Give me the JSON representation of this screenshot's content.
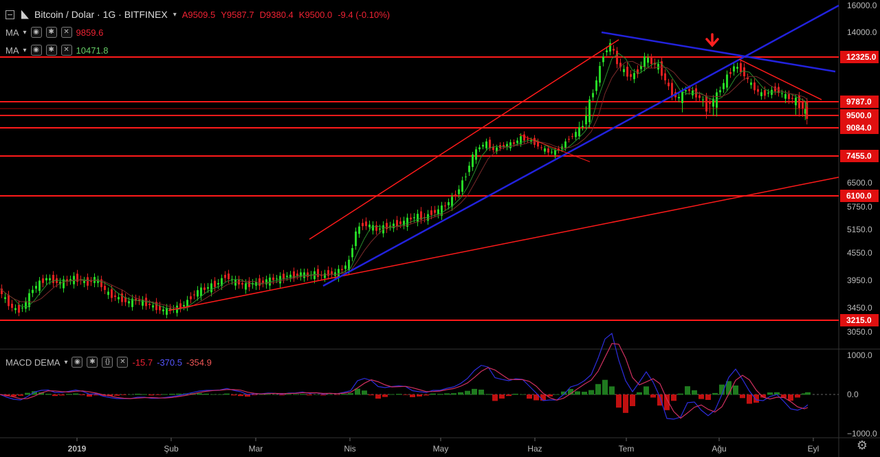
{
  "header": {
    "title": "Bitcoin / Dolar · 1G · BITFINEX",
    "open": "A9509.5",
    "high": "Y9587.7",
    "low": "D9380.4",
    "close": "K9500.0",
    "change": "-9.4 (-0.10%)",
    "ma1_label": "MA",
    "ma1_value": "9859.6",
    "ma2_label": "MA",
    "ma2_value": "10471.8",
    "macd_label": "MACD DEMA",
    "macd_v1": "-15.7",
    "macd_v2": "-370.5",
    "macd_v3": "-354.9"
  },
  "chart_data": {
    "type": "line",
    "price_axis_ticks": [
      "16000.0",
      "14000.0",
      "12325.0",
      "9787.0",
      "9500.0",
      "9084.0",
      "7455.0",
      "6500.0",
      "6100.0",
      "5750.0",
      "5150.0",
      "4550.0",
      "3950.0",
      "3450.0",
      "3215.0",
      "3050.0"
    ],
    "price_axis_labels_plain": [
      "16000.0",
      "14000.0",
      "6500.0",
      "5750.0",
      "5150.0",
      "4550.0",
      "3950.0",
      "3450.0",
      "3050.0"
    ],
    "horizontal_levels": [
      12325,
      9787,
      9500,
      9084,
      7455,
      6100,
      3215
    ],
    "horizontal_level_labels": [
      "12325.0",
      "9787.0",
      "9500.0",
      "9084.0",
      "7455.0",
      "6100.0",
      "3215.0"
    ],
    "macd_axis_ticks": [
      "1000.0",
      "0.0",
      "−1000.0"
    ],
    "time_axis_labels": [
      "2019",
      "Şub",
      "Mar",
      "Nis",
      "May",
      "Haz",
      "Tem",
      "Ağu",
      "Eyl"
    ],
    "price_path": [
      [
        0,
        3800
      ],
      [
        10,
        3600
      ],
      [
        20,
        3450
      ],
      [
        30,
        3400
      ],
      [
        40,
        3550
      ],
      [
        50,
        3800
      ],
      [
        60,
        3900
      ],
      [
        70,
        4000
      ],
      [
        80,
        3950
      ],
      [
        90,
        3900
      ],
      [
        100,
        3950
      ],
      [
        110,
        4000
      ],
      [
        120,
        3950
      ],
      [
        130,
        3900
      ],
      [
        140,
        4000
      ],
      [
        150,
        3850
      ],
      [
        160,
        3700
      ],
      [
        170,
        3650
      ],
      [
        180,
        3600
      ],
      [
        190,
        3550
      ],
      [
        200,
        3600
      ],
      [
        210,
        3550
      ],
      [
        220,
        3500
      ],
      [
        230,
        3450
      ],
      [
        240,
        3400
      ],
      [
        250,
        3420
      ],
      [
        260,
        3450
      ],
      [
        270,
        3500
      ],
      [
        280,
        3650
      ],
      [
        290,
        3750
      ],
      [
        300,
        3800
      ],
      [
        310,
        3850
      ],
      [
        320,
        3900
      ],
      [
        330,
        4050
      ],
      [
        340,
        3950
      ],
      [
        350,
        3900
      ],
      [
        360,
        3850
      ],
      [
        370,
        3900
      ],
      [
        380,
        3900
      ],
      [
        390,
        3950
      ],
      [
        400,
        3980
      ],
      [
        410,
        4000
      ],
      [
        420,
        4050
      ],
      [
        430,
        4050
      ],
      [
        440,
        4100
      ],
      [
        450,
        4050
      ],
      [
        460,
        4100
      ],
      [
        470,
        4050
      ],
      [
        480,
        4100
      ],
      [
        490,
        4100
      ],
      [
        500,
        4200
      ],
      [
        510,
        4350
      ],
      [
        520,
        5100
      ],
      [
        530,
        5300
      ],
      [
        540,
        5250
      ],
      [
        550,
        5150
      ],
      [
        560,
        5200
      ],
      [
        570,
        5250
      ],
      [
        580,
        5300
      ],
      [
        590,
        5350
      ],
      [
        600,
        5450
      ],
      [
        610,
        5500
      ],
      [
        620,
        5450
      ],
      [
        630,
        5600
      ],
      [
        640,
        5650
      ],
      [
        650,
        5800
      ],
      [
        660,
        6000
      ],
      [
        670,
        6300
      ],
      [
        680,
        6800
      ],
      [
        690,
        7500
      ],
      [
        700,
        8000
      ],
      [
        710,
        8200
      ],
      [
        720,
        7800
      ],
      [
        730,
        8000
      ],
      [
        740,
        8100
      ],
      [
        750,
        8200
      ],
      [
        760,
        8500
      ],
      [
        770,
        8400
      ],
      [
        780,
        8200
      ],
      [
        790,
        7900
      ],
      [
        800,
        7700
      ],
      [
        810,
        7700
      ],
      [
        820,
        8000
      ],
      [
        830,
        8500
      ],
      [
        840,
        8800
      ],
      [
        850,
        9200
      ],
      [
        860,
        9800
      ],
      [
        870,
        11000
      ],
      [
        880,
        12500
      ],
      [
        890,
        13200
      ],
      [
        900,
        12000
      ],
      [
        910,
        11500
      ],
      [
        920,
        11200
      ],
      [
        930,
        11500
      ],
      [
        940,
        12300
      ],
      [
        950,
        12000
      ],
      [
        960,
        11800
      ],
      [
        970,
        11000
      ],
      [
        980,
        10200
      ],
      [
        990,
        10000
      ],
      [
        1000,
        10500
      ],
      [
        1010,
        10300
      ],
      [
        1020,
        10000
      ],
      [
        1030,
        9700
      ],
      [
        1040,
        9900
      ],
      [
        1050,
        10500
      ],
      [
        1060,
        11200
      ],
      [
        1070,
        11800
      ],
      [
        1080,
        11600
      ],
      [
        1090,
        11000
      ],
      [
        1100,
        10500
      ],
      [
        1110,
        10200
      ],
      [
        1120,
        10300
      ],
      [
        1130,
        10500
      ],
      [
        1140,
        10200
      ],
      [
        1150,
        10000
      ],
      [
        1160,
        9900
      ],
      [
        1170,
        9650
      ],
      [
        1175,
        9500
      ]
    ]
  },
  "colors": {
    "up": "#26d926",
    "down": "#e02020",
    "level": "#ff1a1a",
    "blue_trend": "#2222dd",
    "ma": "#2a8a2a",
    "macd": "#2d2ddd",
    "signal": "#d03060",
    "hist_up": "#1f7a1f",
    "hist_down": "#c01010"
  }
}
